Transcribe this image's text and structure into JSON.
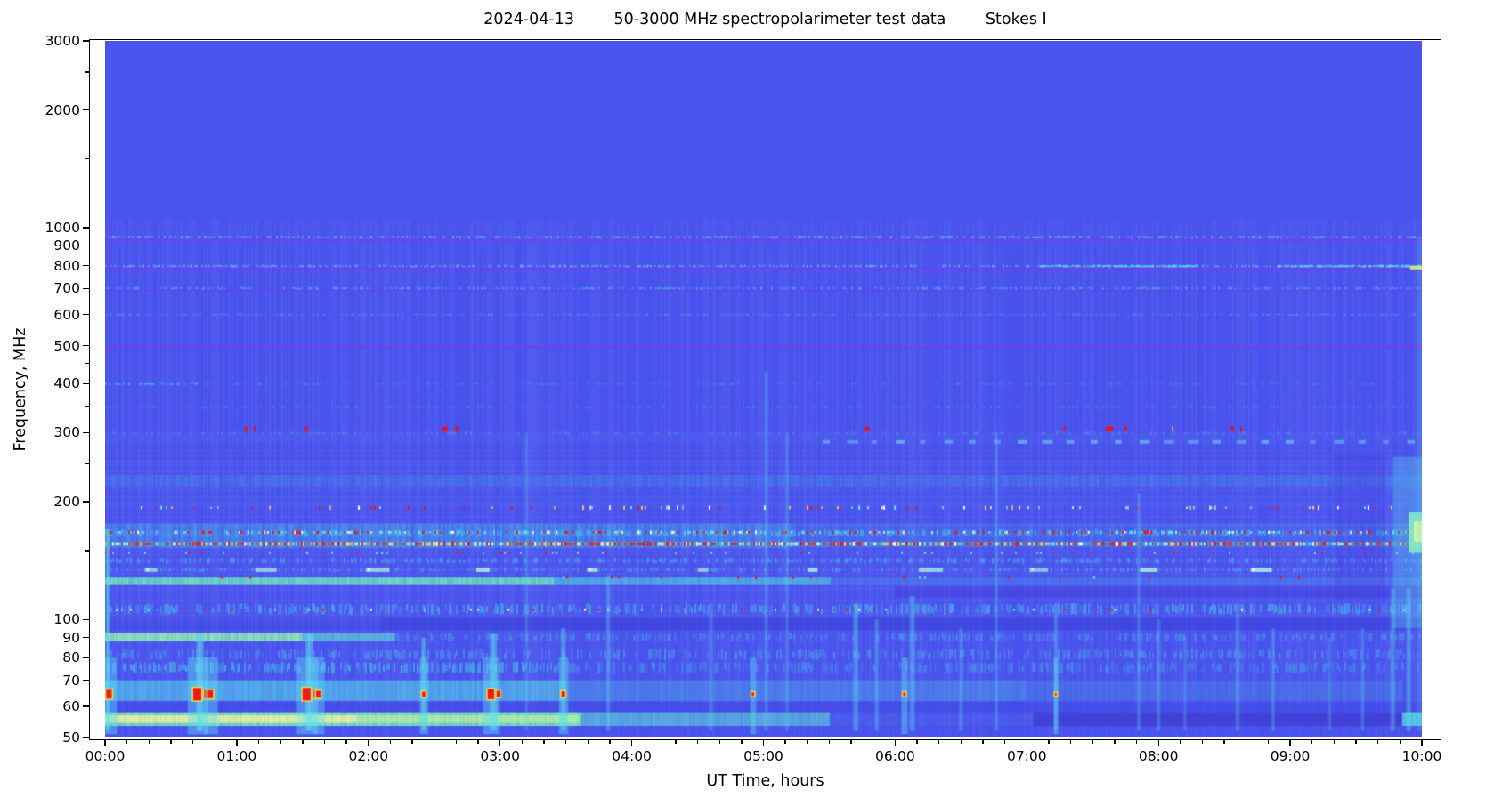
{
  "figure": {
    "title_display": "2024-04-13        50-3000 MHz spectropolarimeter test data        Stokes I"
  },
  "chart_data": {
    "type": "heatmap",
    "subtype": "radio-dynamic-spectrum",
    "title": "2024-04-13   50-3000 MHz spectropolarimeter test data   Stokes I",
    "title_parts": [
      "2024-04-13",
      "50-3000 MHz spectropolarimeter test data",
      "Stokes I"
    ],
    "xlabel": "UT Time, hours",
    "ylabel": "Frequency, MHz",
    "x_axis": {
      "unit": "hours",
      "range": [
        0,
        10
      ],
      "major_tick_labels": [
        "00:00",
        "01:00",
        "02:00",
        "03:00",
        "04:00",
        "05:00",
        "06:00",
        "07:00",
        "08:00",
        "09:00",
        "10:00"
      ],
      "minor_tick_minutes": 10
    },
    "y_axis": {
      "unit": "MHz",
      "scale": "log",
      "range": [
        50,
        3000
      ],
      "major_ticks": [
        3000,
        2000,
        1000,
        900,
        800,
        700,
        600,
        500,
        400,
        300,
        200,
        100,
        90,
        80,
        70,
        60,
        50
      ],
      "minor_ticks": [
        2500,
        1500,
        450,
        350,
        250,
        150
      ]
    },
    "legend": "none",
    "grid": false,
    "background": "#4a54ee",
    "noise_top_mhz": 1050,
    "palette": {
      "base": "#4a54ee",
      "purple": "#7c39ec",
      "cyan": "#3fd0e8",
      "bright_cyan": "#5fe8f0",
      "green": "#7fe9b8",
      "yellow_green": "#e8f29a",
      "yellow": "#ffd24a",
      "red": "#ee1111",
      "orange": "#ff9c30",
      "white": "#ffffff",
      "light_blue": "#66c8f0",
      "streak": "#5fe0f0",
      "dark_blue": "#3d43dc"
    },
    "bands": [
      {
        "f0": 880,
        "f1": 1050,
        "style": "texture",
        "color": "#4e59f0",
        "alpha": 0.5
      },
      {
        "f0": 925,
        "f1": 936,
        "style": "solid",
        "color": "#7c39ec",
        "alpha": 0.8
      },
      {
        "f0": 938,
        "f1": 955,
        "style": "speckle",
        "color": "#3fd0e8",
        "alpha": 0.7,
        "density": 0.55
      },
      {
        "f0": 783,
        "f1": 792,
        "style": "solid",
        "color": "#7c39ec",
        "alpha": 0.8
      },
      {
        "f0": 792,
        "f1": 805,
        "style": "speckle",
        "color": "#3fd0e8",
        "alpha": 0.8,
        "density": 0.55
      },
      {
        "f0": 792,
        "f1": 805,
        "t0": 7.1,
        "t1": 8.3,
        "style": "speckle",
        "color": "#5fe8f0",
        "alpha": 0.95,
        "density": 0.85
      },
      {
        "f0": 792,
        "f1": 805,
        "t0": 8.9,
        "t1": 10,
        "style": "speckle",
        "color": "#5fe8f0",
        "alpha": 0.9,
        "density": 0.75
      },
      {
        "f0": 688,
        "f1": 695,
        "style": "solid",
        "color": "#6f3cee",
        "alpha": 0.5
      },
      {
        "f0": 695,
        "f1": 706,
        "style": "speckle",
        "color": "#40c8e8",
        "alpha": 0.7,
        "density": 0.5
      },
      {
        "f0": 596,
        "f1": 604,
        "style": "speckle",
        "color": "#58aaf2",
        "alpha": 0.5,
        "density": 0.5
      },
      {
        "f0": 493,
        "f1": 500,
        "style": "solid",
        "color": "#7c39ec",
        "alpha": 0.85
      },
      {
        "f0": 345,
        "f1": 352,
        "style": "speckle",
        "color": "#58aaf2",
        "alpha": 0.35,
        "density": 0.35
      },
      {
        "f0": 396,
        "f1": 404,
        "t0": 0,
        "t1": 0.7,
        "style": "speckle",
        "color": "#40c8e8",
        "alpha": 0.8,
        "density": 0.7
      },
      {
        "f0": 396,
        "f1": 404,
        "t0": 0.7,
        "t1": 10,
        "style": "speckle",
        "color": "#40c8e8",
        "alpha": 0.35,
        "density": 0.3
      },
      {
        "f0": 283,
        "f1": 300,
        "style": "texture",
        "color": "#5568f0",
        "alpha": 0.4
      },
      {
        "f0": 296,
        "f1": 302,
        "style": "speckle",
        "color": "#58aaf2",
        "alpha": 0.4,
        "density": 0.35
      },
      {
        "f0": 255,
        "f1": 270,
        "style": "texture",
        "color": "#4a50e8",
        "alpha": 0.45
      },
      {
        "f0": 219,
        "f1": 233,
        "style": "texture",
        "color": "#3f9fe8",
        "alpha": 0.42
      },
      {
        "f0": 196,
        "f1": 210,
        "style": "texture",
        "color": "#4a5cf0",
        "alpha": 0.5
      },
      {
        "f0": 152,
        "f1": 176,
        "t0": 0,
        "t1": 5.2,
        "style": "texture",
        "color": "#45c4e6",
        "alpha": 0.5
      },
      {
        "f0": 152,
        "f1": 176,
        "t0": 5.2,
        "t1": 10,
        "style": "texture",
        "color": "#45c4e6",
        "alpha": 0.22
      },
      {
        "f0": 163,
        "f1": 170,
        "style": "speckle",
        "color": "#44cce8",
        "alpha": 0.6,
        "density": 0.5
      },
      {
        "f0": 154,
        "f1": 158,
        "style": "solid",
        "color": "#49c4e6",
        "alpha": 0.45
      },
      {
        "f0": 139,
        "f1": 144,
        "style": "speckle",
        "color": "#44cce8",
        "alpha": 0.55,
        "density": 0.45
      },
      {
        "f0": 132,
        "f1": 136,
        "style": "speckle",
        "color": "#44cce8",
        "alpha": 0.45,
        "density": 0.4
      },
      {
        "f0": 122.5,
        "f1": 128,
        "t0": 0,
        "t1": 3.4,
        "style": "dense",
        "color": "#70e8c0",
        "alpha": 0.9
      },
      {
        "f0": 122.5,
        "f1": 128,
        "t0": 3.4,
        "t1": 5.5,
        "style": "dense",
        "color": "#55d8e0",
        "alpha": 0.7
      },
      {
        "f0": 122.5,
        "f1": 128,
        "t0": 5.5,
        "t1": 10,
        "style": "dense",
        "color": "#4fa0e8",
        "alpha": 0.4
      },
      {
        "f0": 114,
        "f1": 121,
        "t0": 6,
        "t1": 10,
        "style": "solid",
        "color": "#4140d8",
        "alpha": 0.5
      },
      {
        "f0": 103,
        "f1": 110,
        "style": "speckle",
        "color": "#49c8e8",
        "alpha": 0.6,
        "density": 0.5
      },
      {
        "f0": 94,
        "f1": 101,
        "t0": 0,
        "t1": 2.1,
        "style": "solid",
        "color": "#3d43dc",
        "alpha": 0.3
      },
      {
        "f0": 94,
        "f1": 101,
        "t0": 2.1,
        "t1": 10,
        "style": "solid",
        "color": "#3d43dc",
        "alpha": 0.7
      },
      {
        "f0": 88,
        "f1": 92.5,
        "t0": 0,
        "t1": 1.5,
        "style": "dense",
        "color": "#90edb4",
        "alpha": 0.95
      },
      {
        "f0": 88,
        "f1": 92.5,
        "t0": 1.5,
        "t1": 2.2,
        "style": "dense",
        "color": "#60d8d8",
        "alpha": 0.8
      },
      {
        "f0": 88,
        "f1": 92.5,
        "t0": 2.2,
        "t1": 10,
        "style": "speckle",
        "color": "#4fc0e8",
        "alpha": 0.5,
        "density": 0.45
      },
      {
        "f0": 79,
        "f1": 84,
        "style": "speckle",
        "color": "#4ec8e8",
        "alpha": 0.45,
        "density": 0.45
      },
      {
        "f0": 73,
        "f1": 78,
        "t0": 0,
        "t1": 3.5,
        "style": "speckle",
        "color": "#46c8e8",
        "alpha": 0.7,
        "density": 0.6
      },
      {
        "f0": 73,
        "f1": 78,
        "t0": 3.5,
        "t1": 10,
        "style": "speckle",
        "color": "#46c8e8",
        "alpha": 0.45,
        "density": 0.5
      },
      {
        "f0": 62,
        "f1": 70,
        "t0": 0,
        "t1": 3.5,
        "style": "dense",
        "color": "#55d0e8",
        "alpha": 0.7
      },
      {
        "f0": 62,
        "f1": 70,
        "t0": 3.5,
        "t1": 7,
        "style": "dense",
        "color": "#50b8e8",
        "alpha": 0.45
      },
      {
        "f0": 62,
        "f1": 70,
        "t0": 7,
        "t1": 9.85,
        "style": "dense",
        "color": "#4c9ee0",
        "alpha": 0.35
      },
      {
        "f0": 58,
        "f1": 61.5,
        "style": "solid",
        "color": "#4149e4",
        "alpha": 0.6
      },
      {
        "f0": 53.5,
        "f1": 58,
        "t0": 0,
        "t1": 3.6,
        "style": "dense",
        "color": "#7fe9b8",
        "alpha": 0.95
      },
      {
        "f0": 54.5,
        "f1": 57,
        "t0": 0,
        "t1": 1.9,
        "style": "dense",
        "color": "#eef29e",
        "alpha": 0.9
      },
      {
        "f0": 54.5,
        "f1": 57,
        "t0": 1.9,
        "t1": 3.6,
        "style": "dense",
        "color": "#baefa0",
        "alpha": 0.8
      },
      {
        "f0": 53.5,
        "f1": 58,
        "t0": 3.6,
        "t1": 5.5,
        "style": "dense",
        "color": "#62dcd8",
        "alpha": 0.7
      },
      {
        "f0": 53.5,
        "f1": 58,
        "t0": 5.5,
        "t1": 7.05,
        "style": "dense",
        "color": "#4b62ea",
        "alpha": 0.6
      },
      {
        "f0": 53.5,
        "f1": 58,
        "t0": 7.05,
        "t1": 9.85,
        "style": "solid",
        "color": "#3f3bd0",
        "alpha": 0.75
      },
      {
        "f0": 53.5,
        "f1": 58,
        "t0": 9.85,
        "t1": 10,
        "style": "dense",
        "color": "#58e8e0",
        "alpha": 0.9
      },
      {
        "f0": 50,
        "f1": 53.5,
        "style": "texture",
        "color": "#4753ee",
        "alpha": 0.7
      },
      {
        "f0": 112,
        "f1": 265,
        "t0": 9.33,
        "t1": 9.72,
        "style": "solid",
        "color": "#473cdc",
        "alpha": 0.2
      }
    ],
    "speckle_rows": [
      {
        "f": 193,
        "h": 5,
        "density": 0.13,
        "t0": 0,
        "t1": 10,
        "palette": [
          "#ee1111",
          "#ffffff",
          "#6fe8f0",
          "#ffd24a"
        ]
      },
      {
        "f": 167,
        "h": 4,
        "density": 0.38,
        "t0": 0,
        "t1": 10,
        "palette": [
          "#ee1111",
          "#ee1111",
          "#ffffff",
          "#5fe8f0",
          "#5fe8f0"
        ]
      },
      {
        "f": 156,
        "h": 5,
        "density": 0.8,
        "t0": 0,
        "t1": 10,
        "palette": [
          "#ee1111",
          "#ee1111",
          "#f03311",
          "#ffd24a",
          "#ffffff",
          "#7ff0f0",
          "#ee1111"
        ]
      },
      {
        "f": 148,
        "h": 3,
        "density": 0.08,
        "t0": 0,
        "t1": 10,
        "palette": [
          "#ee1111",
          "#6fe8f0"
        ]
      },
      {
        "f": 128,
        "h": 4,
        "density": 0.04,
        "t0": 0,
        "t1": 10,
        "palette": [
          "#ee1111",
          "#ee1111",
          "#6fe8f0"
        ]
      },
      {
        "f": 106,
        "h": 3,
        "density": 0.06,
        "t0": 0,
        "t1": 10,
        "palette": [
          "#6fe8f0",
          "#ee1111",
          "#ffffff"
        ]
      }
    ],
    "dash_rows": [
      {
        "f": 284,
        "h": 4,
        "t0": 5.45,
        "t1": 10,
        "period": 0.185,
        "duty": 0.06,
        "color": "#66c8f0",
        "alpha": 0.75
      },
      {
        "f": 134,
        "h": 5,
        "t0": 0.3,
        "t1": 9.2,
        "period": 0.84,
        "duty": 0.12,
        "color": "#aef4e0",
        "alpha": 0.9,
        "core": "#ffffff"
      }
    ],
    "dot_events_mhz": 307,
    "dot_events": [
      {
        "t": 1.06,
        "w": 3
      },
      {
        "t": 1.13,
        "w": 2
      },
      {
        "t": 1.52,
        "w": 3
      },
      {
        "t": 2.56,
        "w": 6
      },
      {
        "t": 2.66,
        "w": 3
      },
      {
        "t": 5.77,
        "w": 5
      },
      {
        "t": 7.28,
        "w": 2
      },
      {
        "t": 7.6,
        "w": 8
      },
      {
        "t": 7.74,
        "w": 3
      },
      {
        "t": 8.1,
        "w": 2,
        "color": "#ff9c30"
      },
      {
        "t": 8.55,
        "w": 3
      },
      {
        "t": 8.62,
        "w": 2
      }
    ],
    "burst_events_mhz": 64.5,
    "burst_events": [
      {
        "t": 0.03,
        "s": 0.7
      },
      {
        "t": 0.7,
        "s": 1,
        "d": 1
      },
      {
        "t": 0.8,
        "s": 0.65
      },
      {
        "t": 1.53,
        "s": 1,
        "d": 1
      },
      {
        "t": 1.62,
        "s": 0.55
      },
      {
        "t": 2.42,
        "s": 0.4
      },
      {
        "t": 2.93,
        "s": 0.8,
        "d": 1
      },
      {
        "t": 3.48,
        "s": 0.45
      },
      {
        "t": 4.92,
        "s": 0.3
      },
      {
        "t": 6.07,
        "s": 0.3
      },
      {
        "t": 7.22,
        "s": 0.22
      }
    ],
    "vertical_streaks": [
      {
        "t": 0.02,
        "f0": 52,
        "f1": 170,
        "a": 0.4,
        "w": 5
      },
      {
        "t": 0.72,
        "f0": 52,
        "f1": 92,
        "a": 0.5,
        "w": 8
      },
      {
        "t": 1.55,
        "f0": 52,
        "f1": 92,
        "a": 0.5,
        "w": 8
      },
      {
        "t": 2.42,
        "f0": 52,
        "f1": 90,
        "a": 0.35,
        "w": 6
      },
      {
        "t": 2.95,
        "f0": 52,
        "f1": 92,
        "a": 0.45,
        "w": 8
      },
      {
        "t": 3.2,
        "f0": 52,
        "f1": 300,
        "a": 0.15,
        "w": 4
      },
      {
        "t": 3.48,
        "f0": 52,
        "f1": 95,
        "a": 0.3,
        "w": 6
      },
      {
        "t": 3.82,
        "f0": 52,
        "f1": 130,
        "a": 0.22,
        "w": 5
      },
      {
        "t": 4.6,
        "f0": 52,
        "f1": 110,
        "a": 0.18,
        "w": 5
      },
      {
        "t": 5.02,
        "f0": 52,
        "f1": 430,
        "a": 0.2,
        "w": 4
      },
      {
        "t": 5.18,
        "f0": 52,
        "f1": 300,
        "a": 0.15,
        "w": 4
      },
      {
        "t": 5.7,
        "f0": 52,
        "f1": 110,
        "a": 0.28,
        "w": 6
      },
      {
        "t": 5.86,
        "f0": 52,
        "f1": 100,
        "a": 0.22,
        "w": 5
      },
      {
        "t": 6.13,
        "f0": 52,
        "f1": 115,
        "a": 0.28,
        "w": 6
      },
      {
        "t": 6.5,
        "f0": 52,
        "f1": 95,
        "a": 0.18,
        "w": 5
      },
      {
        "t": 6.77,
        "f0": 52,
        "f1": 300,
        "a": 0.18,
        "w": 4
      },
      {
        "t": 7.22,
        "f0": 52,
        "f1": 110,
        "a": 0.22,
        "w": 5
      },
      {
        "t": 7.85,
        "f0": 52,
        "f1": 210,
        "a": 0.18,
        "w": 4
      },
      {
        "t": 8.0,
        "f0": 52,
        "f1": 100,
        "a": 0.18,
        "w": 5
      },
      {
        "t": 8.2,
        "f0": 52,
        "f1": 90,
        "a": 0.15,
        "w": 4
      },
      {
        "t": 8.6,
        "f0": 52,
        "f1": 110,
        "a": 0.2,
        "w": 5
      },
      {
        "t": 8.87,
        "f0": 52,
        "f1": 95,
        "a": 0.18,
        "w": 4
      },
      {
        "t": 9.3,
        "f0": 52,
        "f1": 90,
        "a": 0.15,
        "w": 4
      },
      {
        "t": 9.55,
        "f0": 52,
        "f1": 95,
        "a": 0.18,
        "w": 4
      },
      {
        "t": 9.78,
        "f0": 52,
        "f1": 120,
        "a": 0.25,
        "w": 6
      },
      {
        "t": 9.9,
        "f0": 52,
        "f1": 120,
        "a": 0.3,
        "w": 6
      }
    ],
    "edge_event": {
      "glow": {
        "t0": 9.78,
        "t1": 10,
        "f0": 95,
        "f1": 260,
        "color": "#5fe0f0",
        "alpha": 0.3
      },
      "core": {
        "t0": 9.9,
        "t1": 10,
        "f0": 148,
        "f1": 188,
        "color": "#86f2c0",
        "alpha": 0.85
      },
      "core_inner": {
        "t0": 9.94,
        "t1": 10,
        "f0": 158,
        "f1": 178,
        "color": "#d8f6a0",
        "alpha": 0.9
      },
      "column": {
        "t0": 9.96,
        "t1": 10,
        "f0": 52,
        "f1": 950,
        "color": "#5fe0f0",
        "alpha": 0.16
      },
      "flash": {
        "t0": 9.91,
        "t1": 10,
        "f0": 783,
        "f1": 800,
        "color": "#d6f07e",
        "alpha": 0.9
      }
    }
  }
}
